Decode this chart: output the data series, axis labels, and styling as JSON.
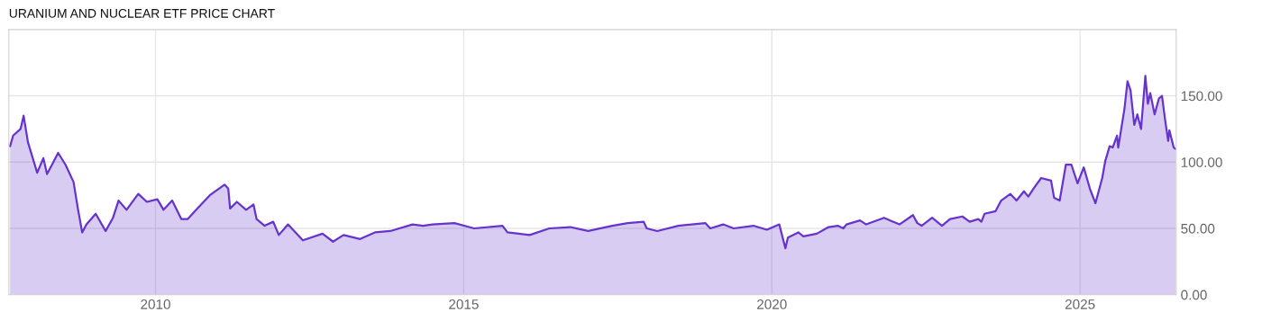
{
  "chart_data": {
    "type": "area",
    "title": "URANIUM AND NUCLEAR ETF PRICE CHART",
    "x": [
      2007.64,
      2007.69,
      2007.81,
      2007.86,
      2007.93,
      2008.08,
      2008.18,
      2008.24,
      2008.32,
      2008.42,
      2008.54,
      2008.67,
      2008.74,
      2008.81,
      2008.88,
      2009.03,
      2009.19,
      2009.31,
      2009.4,
      2009.53,
      2009.72,
      2009.86,
      2010.03,
      2010.13,
      2010.27,
      2010.42,
      2010.52,
      2010.64,
      2010.88,
      2011.12,
      2011.18,
      2011.21,
      2011.32,
      2011.47,
      2011.59,
      2011.64,
      2011.77,
      2011.91,
      2012.0,
      2012.15,
      2012.39,
      2012.71,
      2012.88,
      2013.05,
      2013.32,
      2013.56,
      2013.81,
      2014.17,
      2014.34,
      2014.49,
      2014.85,
      2015.17,
      2015.63,
      2015.71,
      2016.07,
      2016.39,
      2016.73,
      2017.02,
      2017.41,
      2017.66,
      2017.92,
      2017.97,
      2018.14,
      2018.48,
      2018.92,
      2019.0,
      2019.21,
      2019.38,
      2019.7,
      2019.92,
      2020.12,
      2020.22,
      2020.26,
      2020.43,
      2020.51,
      2020.73,
      2020.92,
      2021.07,
      2021.16,
      2021.21,
      2021.43,
      2021.53,
      2021.82,
      2021.92,
      2022.07,
      2022.29,
      2022.36,
      2022.43,
      2022.6,
      2022.76,
      2022.89,
      2023.09,
      2023.21,
      2023.35,
      2023.4,
      2023.45,
      2023.63,
      2023.72,
      2023.87,
      2023.97,
      2024.09,
      2024.16,
      2024.26,
      2024.37,
      2024.53,
      2024.58,
      2024.67,
      2024.77,
      2024.86,
      2024.96,
      2025.06,
      2025.16,
      2025.25,
      2025.36,
      2025.41,
      2025.48,
      2025.53,
      2025.6,
      2025.62,
      2025.72,
      2025.77,
      2025.82,
      2025.88,
      2025.93,
      2025.99,
      2026.06,
      2026.1,
      2026.14,
      2026.21,
      2026.28,
      2026.33,
      2026.38,
      2026.43,
      2026.45,
      2026.52,
      2026.55
    ],
    "series": [
      {
        "color": "#6633cc",
        "values": [
          112,
          120,
          125,
          135,
          115,
          92,
          103,
          91,
          98,
          107,
          98,
          85,
          65,
          47,
          53,
          61,
          48,
          58,
          71,
          64,
          76,
          70,
          72,
          64,
          71,
          57,
          57,
          63,
          75,
          83,
          80,
          65,
          70,
          64,
          68,
          57,
          52,
          55,
          45,
          53,
          41,
          46,
          40,
          45,
          42,
          47,
          48,
          53,
          52,
          53,
          54,
          50,
          52,
          47,
          45,
          50,
          51,
          48,
          52,
          54,
          55,
          50,
          48,
          52,
          54,
          50,
          53,
          50,
          52,
          49,
          53,
          35,
          43,
          47,
          44,
          46,
          51,
          52,
          50,
          53,
          56,
          53,
          58,
          56,
          53,
          60,
          54,
          52,
          58,
          52,
          57,
          59,
          55,
          57,
          55,
          61,
          63,
          71,
          76,
          71,
          78,
          74,
          81,
          88,
          86,
          73,
          71,
          98,
          98,
          84,
          96,
          80,
          69,
          88,
          101,
          112,
          111,
          120,
          111,
          140,
          161,
          154,
          128,
          136,
          125,
          165,
          144,
          152,
          136,
          148,
          150,
          132,
          116,
          124,
          111,
          110
        ]
      }
    ],
    "xlim": [
      2007.62,
      2026.56
    ],
    "xticks": [
      2010,
      2015,
      2020,
      2025
    ],
    "ylim": [
      0,
      200
    ],
    "yticks": [
      {
        "value": 0,
        "label": "0.00"
      },
      {
        "value": 50,
        "label": "50.00"
      },
      {
        "value": 100,
        "label": "100.00"
      },
      {
        "value": 150,
        "label": "150.00"
      }
    ],
    "grid": true
  }
}
